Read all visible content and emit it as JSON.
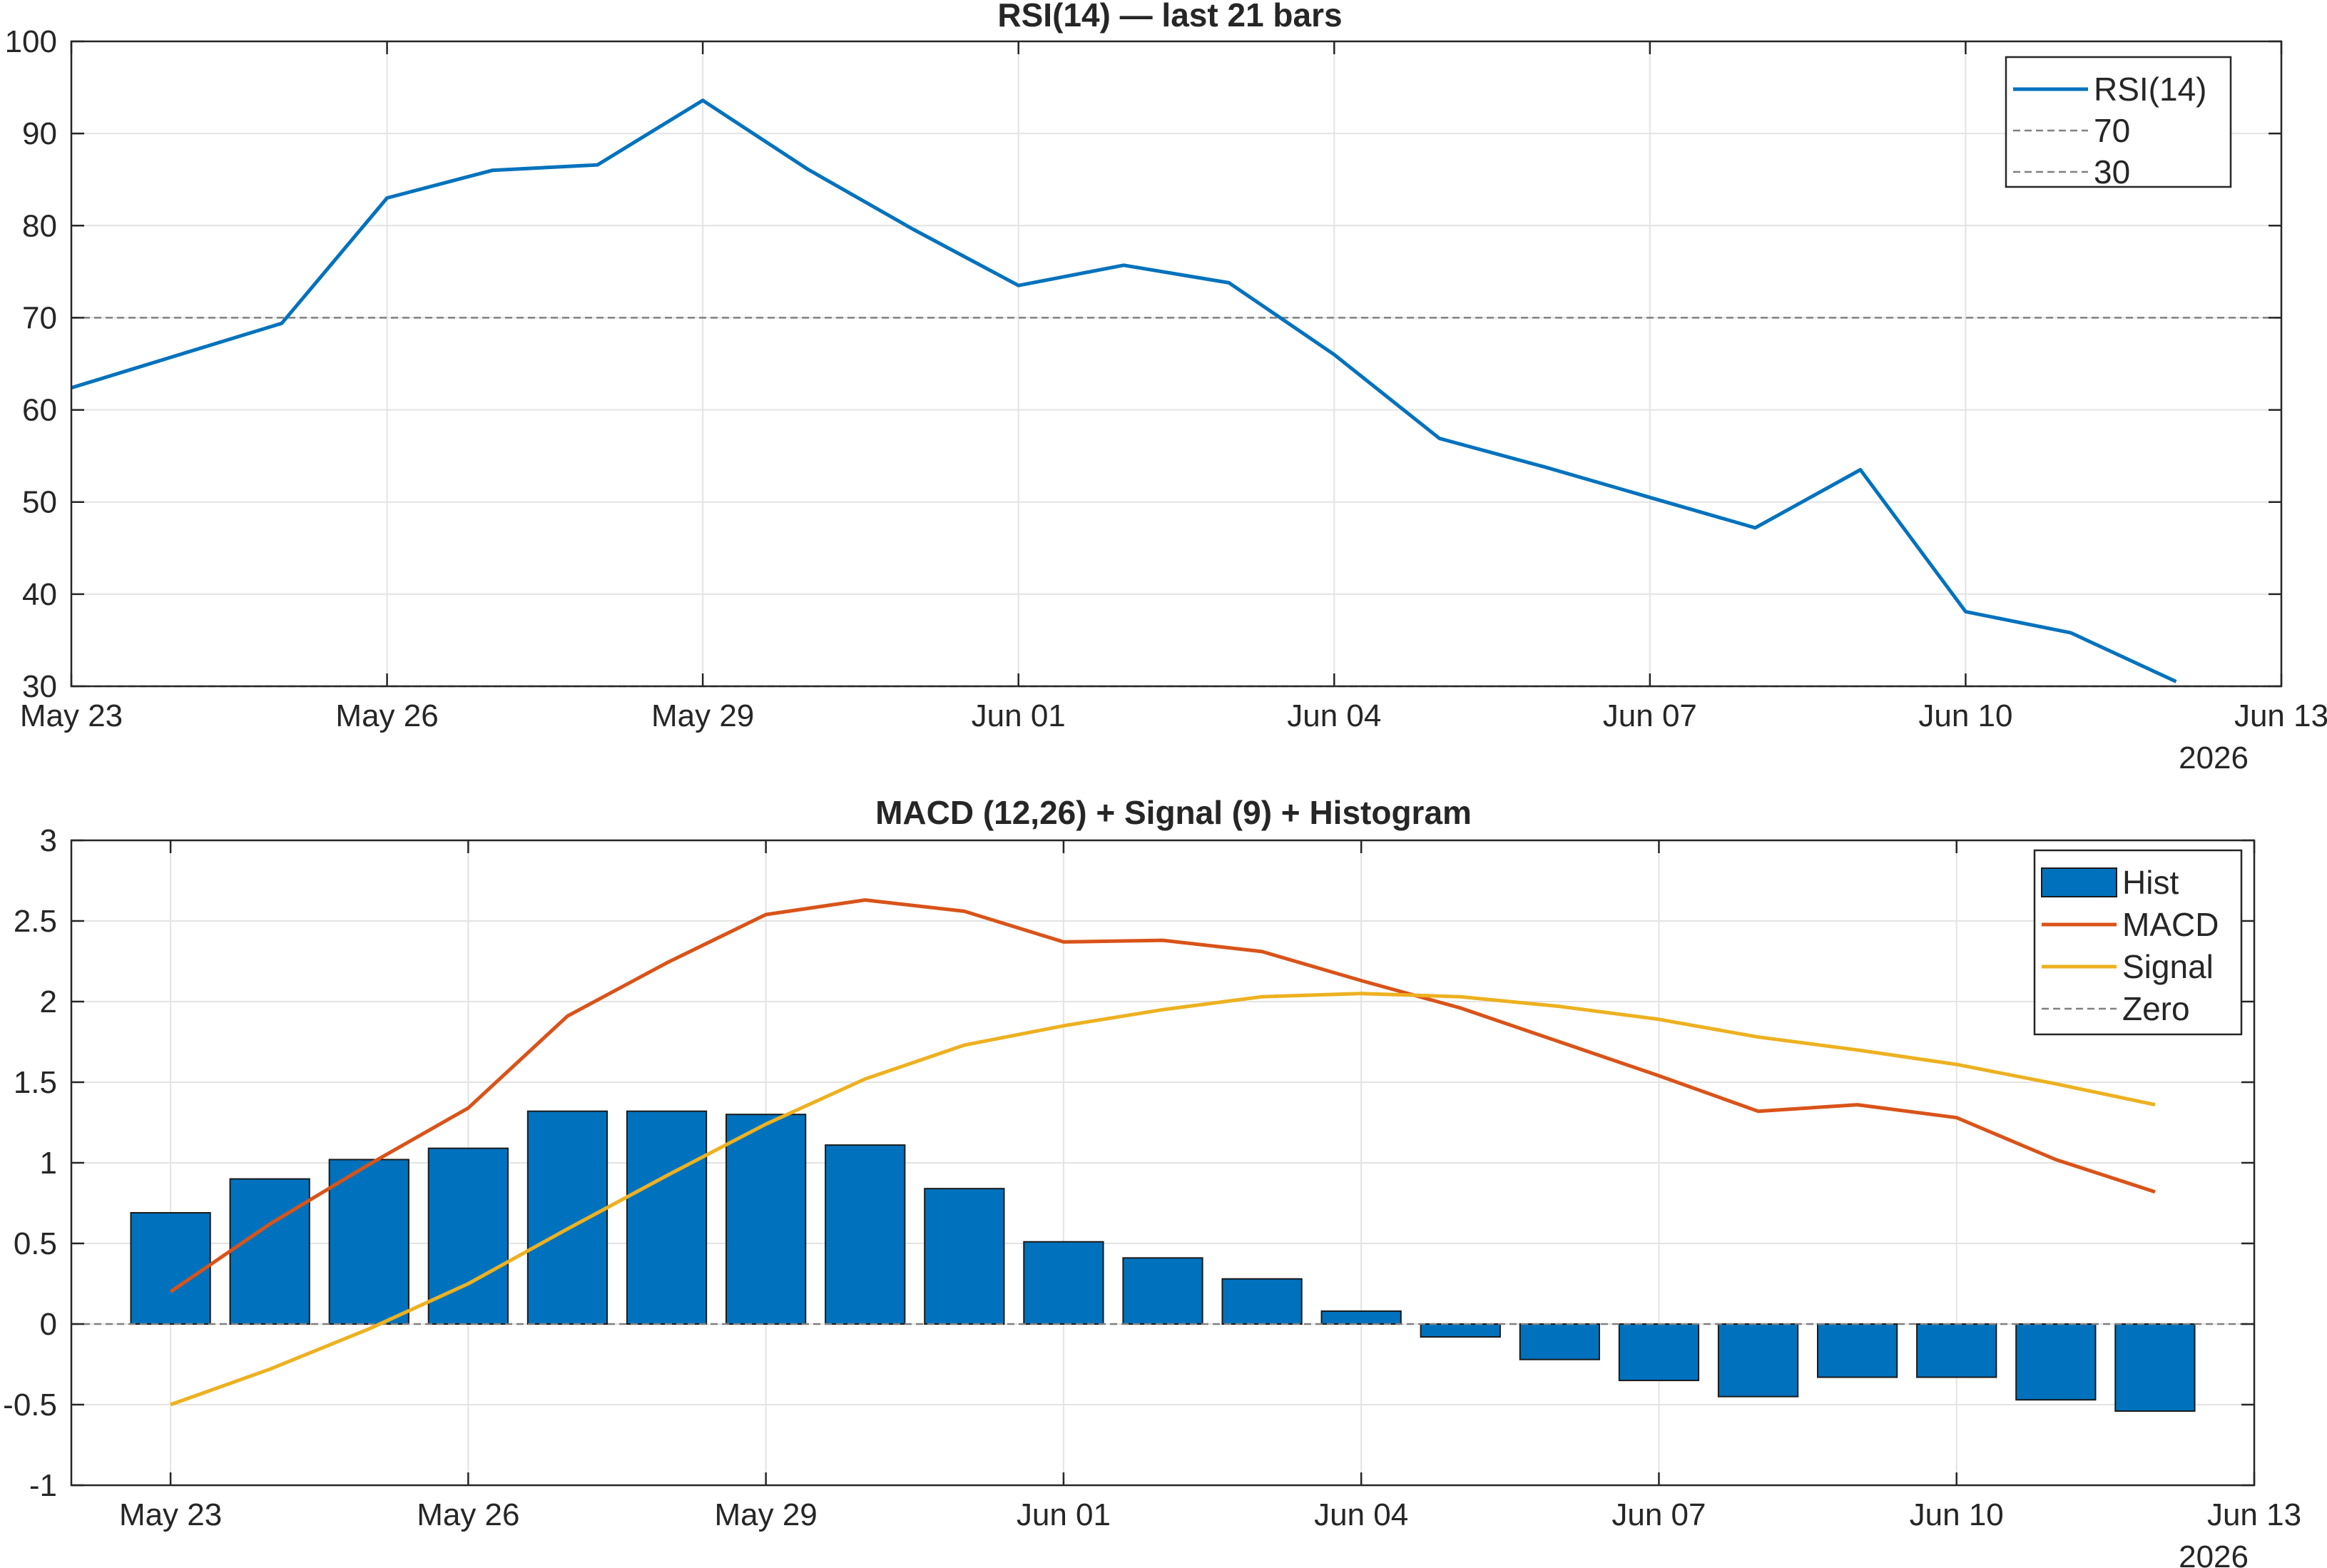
{
  "chart_data": [
    {
      "type": "line",
      "title": "RSI(14) — last 21 bars",
      "x": [
        "2026-05-23",
        "2026-05-24",
        "2026-05-25",
        "2026-05-26",
        "2026-05-27",
        "2026-05-28",
        "2026-05-29",
        "2026-05-30",
        "2026-05-31",
        "2026-06-01",
        "2026-06-02",
        "2026-06-03",
        "2026-06-04",
        "2026-06-05",
        "2026-06-06",
        "2026-06-07",
        "2026-06-08",
        "2026-06-09",
        "2026-06-10",
        "2026-06-11",
        "2026-06-12"
      ],
      "series": [
        {
          "name": "RSI(14)",
          "color": "#0072BD",
          "values": [
            62.4,
            65.9,
            69.4,
            83.0,
            86.0,
            86.6,
            93.6,
            86.1,
            79.6,
            73.5,
            75.7,
            73.8,
            66.0,
            56.9,
            53.8,
            50.5,
            47.2,
            53.5,
            38.1,
            35.8,
            30.5
          ]
        },
        {
          "name": "70",
          "style": "dashed",
          "color": "#808080",
          "y": 70
        },
        {
          "name": "30",
          "style": "dashed",
          "color": "#808080",
          "y": 30
        }
      ],
      "xtick_labels": [
        "May 23",
        "May 26",
        "May 29",
        "Jun 01",
        "Jun 04",
        "Jun 07",
        "Jun 10",
        "Jun 13"
      ],
      "xtick_dates": [
        "2026-05-23",
        "2026-05-26",
        "2026-05-29",
        "2026-06-01",
        "2026-06-04",
        "2026-06-07",
        "2026-06-10",
        "2026-06-13"
      ],
      "x_year_label": "2026",
      "ylim": [
        30,
        100
      ],
      "yticks": [
        30,
        40,
        50,
        60,
        70,
        80,
        90,
        100
      ],
      "xlim": [
        "2026-05-23",
        "2026-06-13"
      ],
      "grid": true,
      "legend_position": "top-right"
    },
    {
      "type": "bar",
      "title": "MACD (12,26) + Signal (9) + Histogram",
      "x": [
        "2026-05-23",
        "2026-05-24",
        "2026-05-25",
        "2026-05-26",
        "2026-05-27",
        "2026-05-28",
        "2026-05-29",
        "2026-05-30",
        "2026-05-31",
        "2026-06-01",
        "2026-06-02",
        "2026-06-03",
        "2026-06-04",
        "2026-06-05",
        "2026-06-06",
        "2026-06-07",
        "2026-06-08",
        "2026-06-09",
        "2026-06-10",
        "2026-06-11",
        "2026-06-12"
      ],
      "series": [
        {
          "name": "Hist",
          "type": "bar",
          "color": "#0072BD",
          "values": [
            0.69,
            0.9,
            1.02,
            1.09,
            1.32,
            1.32,
            1.3,
            1.11,
            0.84,
            0.51,
            0.41,
            0.28,
            0.08,
            -0.08,
            -0.22,
            -0.35,
            -0.45,
            -0.33,
            -0.33,
            -0.47,
            -0.54
          ]
        },
        {
          "name": "MACD",
          "type": "line",
          "color": "#D95319",
          "values": [
            0.2,
            0.62,
            0.99,
            1.34,
            1.91,
            2.24,
            2.54,
            2.63,
            2.56,
            2.37,
            2.38,
            2.31,
            2.13,
            1.96,
            1.75,
            1.54,
            1.32,
            1.36,
            1.28,
            1.02,
            0.82
          ]
        },
        {
          "name": "Signal",
          "type": "line",
          "color": "#EDB120",
          "values": [
            -0.5,
            -0.28,
            -0.03,
            0.25,
            0.59,
            0.92,
            1.24,
            1.52,
            1.73,
            1.85,
            1.95,
            2.03,
            2.05,
            2.03,
            1.97,
            1.89,
            1.78,
            1.7,
            1.61,
            1.49,
            1.36
          ]
        },
        {
          "name": "Zero",
          "type": "line",
          "style": "dashed",
          "color": "#808080",
          "y": 0
        }
      ],
      "xtick_labels": [
        "May 23",
        "May 26",
        "May 29",
        "Jun 01",
        "Jun 04",
        "Jun 07",
        "Jun 10",
        "Jun 13"
      ],
      "xtick_dates": [
        "2026-05-23",
        "2026-05-26",
        "2026-05-29",
        "2026-06-01",
        "2026-06-04",
        "2026-06-07",
        "2026-06-10",
        "2026-06-13"
      ],
      "x_year_label": "2026",
      "ylim": [
        -1,
        3
      ],
      "yticks": [
        -1,
        -0.5,
        0,
        0.5,
        1,
        1.5,
        2,
        2.5,
        3
      ],
      "xlim": [
        "2026-05-22",
        "2026-06-13"
      ],
      "grid": true,
      "legend_position": "top-right"
    }
  ]
}
